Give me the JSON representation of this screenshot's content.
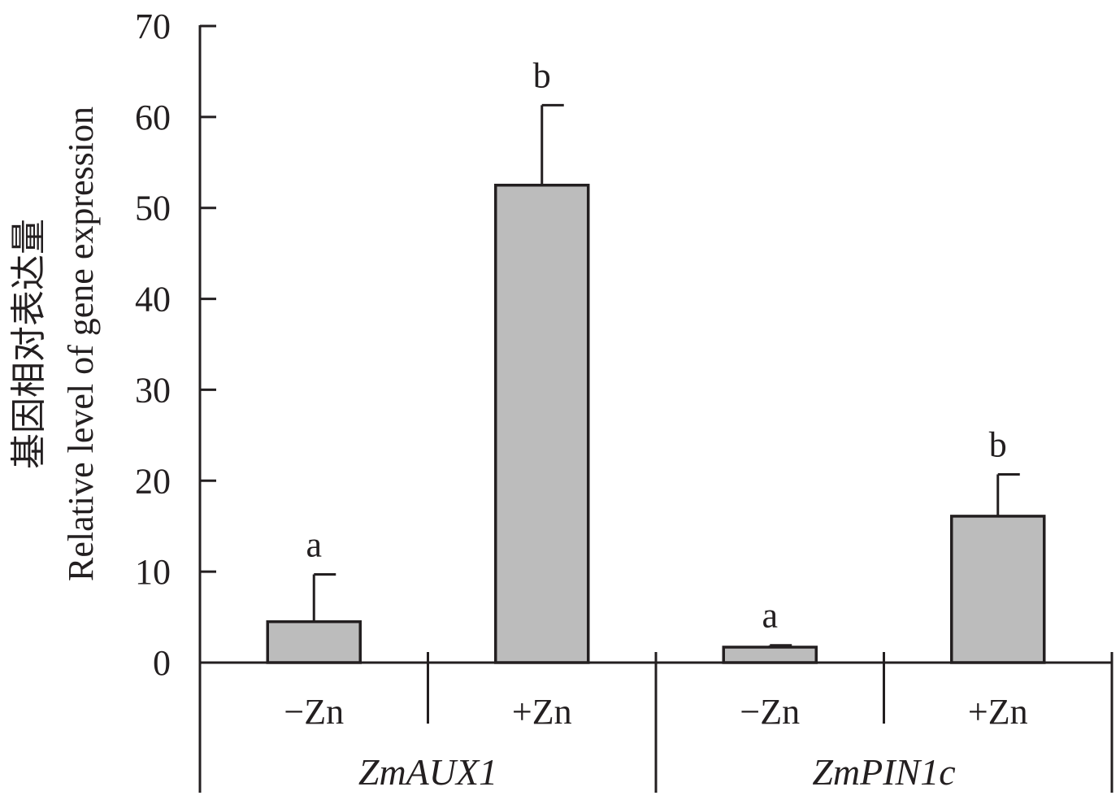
{
  "chart_data": {
    "type": "bar",
    "title": "",
    "ylabel_cn": "基因相对表达量",
    "ylabel": "Relative level of gene expression",
    "xlabel": "",
    "ylim": [
      0,
      70
    ],
    "yticks": [
      0,
      10,
      20,
      30,
      40,
      50,
      60,
      70
    ],
    "groups": [
      {
        "name": "ZmAUX1",
        "bars": [
          {
            "category": "−Zn",
            "value": 4.5,
            "error": 5.2,
            "significance": "a"
          },
          {
            "category": "+Zn",
            "value": 52.5,
            "error": 8.8,
            "significance": "b"
          }
        ]
      },
      {
        "name": "ZmPIN1c",
        "bars": [
          {
            "category": "−Zn",
            "value": 1.7,
            "error": 0.2,
            "significance": "a"
          },
          {
            "category": "+Zn",
            "value": 16.1,
            "error": 4.6,
            "significance": "b"
          }
        ]
      }
    ],
    "colors": {
      "bar_fill": "#bcbcbc",
      "line": "#231f20"
    }
  }
}
